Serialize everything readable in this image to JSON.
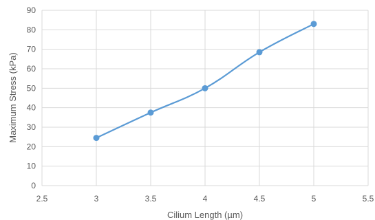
{
  "chart_data": {
    "type": "scatter",
    "title": "",
    "xlabel": "Cilium Length (µm)",
    "ylabel": "Maximum Stress (kPa)",
    "xlim": [
      2.5,
      5.5
    ],
    "ylim": [
      0,
      90
    ],
    "xticks": [
      "2.5",
      "3",
      "3.5",
      "4",
      "4.5",
      "5",
      "5.5"
    ],
    "yticks": [
      "0",
      "10",
      "20",
      "30",
      "40",
      "50",
      "60",
      "70",
      "80",
      "90"
    ],
    "grid": true,
    "smooth_line": true,
    "series": [
      {
        "color": "#5b9bd5",
        "x": [
          3,
          3.5,
          4,
          4.5,
          5
        ],
        "y": [
          24.5,
          37.5,
          50,
          68.5,
          83
        ]
      }
    ]
  }
}
